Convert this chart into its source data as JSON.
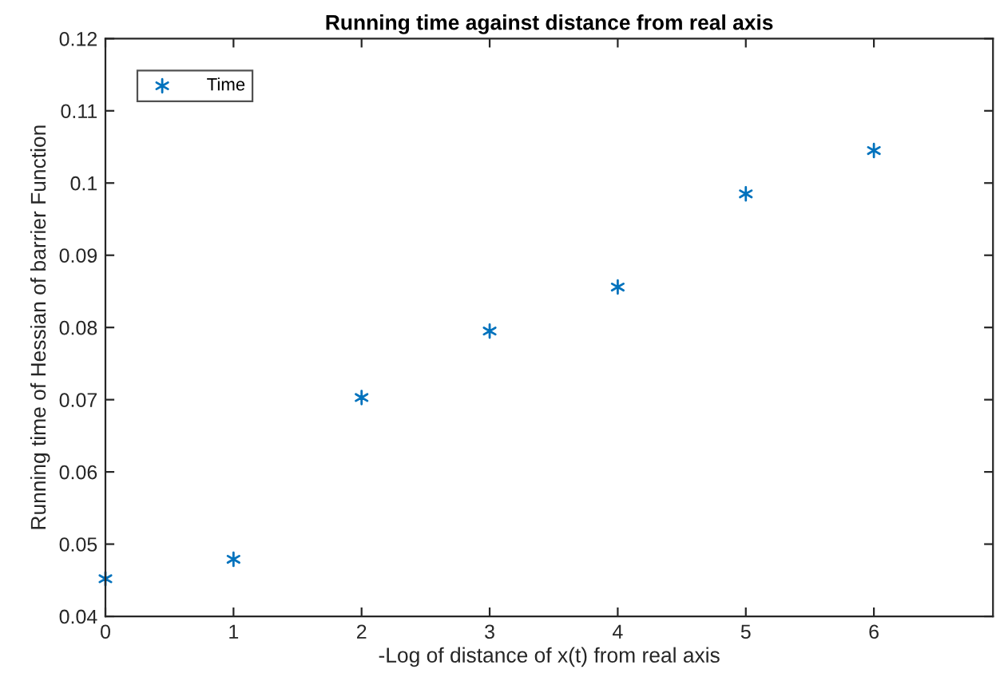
{
  "chart_data": {
    "type": "scatter",
    "title": "Running time against distance from real axis",
    "xlabel": "-Log of distance of x(t) from real axis",
    "ylabel": "Running time of Hessian of barrier Function",
    "x": [
      0,
      1,
      2,
      3,
      4,
      5,
      6
    ],
    "series": [
      {
        "name": "Time",
        "color": "#0072bd",
        "values": [
          0.0452,
          0.0479,
          0.0703,
          0.0795,
          0.0856,
          0.0985,
          0.1045
        ]
      }
    ],
    "xlim": [
      0,
      6.93
    ],
    "xticks": [
      0,
      1,
      2,
      3,
      4,
      5,
      6
    ],
    "ylim": [
      0.04,
      0.12
    ],
    "yticks": [
      0.04,
      0.05,
      0.06,
      0.07,
      0.08,
      0.09,
      0.1,
      0.11,
      0.12
    ],
    "marker": "cross",
    "legend": "top left",
    "grid": false
  }
}
